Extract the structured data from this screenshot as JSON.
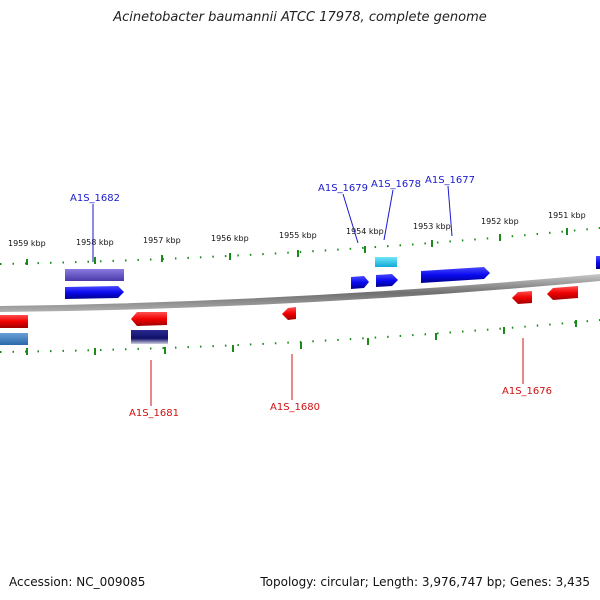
{
  "header": {
    "title": "Acinetobacter baumannii ATCC 17978, complete genome"
  },
  "ruler": {
    "ticks": [
      {
        "label": "1959 kbp"
      },
      {
        "label": "1958 kbp"
      },
      {
        "label": "1957 kbp"
      },
      {
        "label": "1956 kbp"
      },
      {
        "label": "1955 kbp"
      },
      {
        "label": "1954 kbp"
      },
      {
        "label": "1953 kbp"
      },
      {
        "label": "1952 kbp"
      },
      {
        "label": "1951 kbp"
      }
    ]
  },
  "genes": {
    "forward_labels": [
      "A1S_1682",
      "A1S_1679",
      "A1S_1678",
      "A1S_1677"
    ],
    "reverse_labels": [
      "A1S_1681",
      "A1S_1680",
      "A1S_1676"
    ]
  },
  "colors": {
    "forward": "#1010e0",
    "reverse": "#e01010",
    "backbone": "#808080",
    "ticks": "#1a8a1a"
  },
  "footer": {
    "accession": "Accession: NC_009085",
    "summary": "Topology: circular; Length: 3,976,747 bp; Genes: 3,435"
  }
}
